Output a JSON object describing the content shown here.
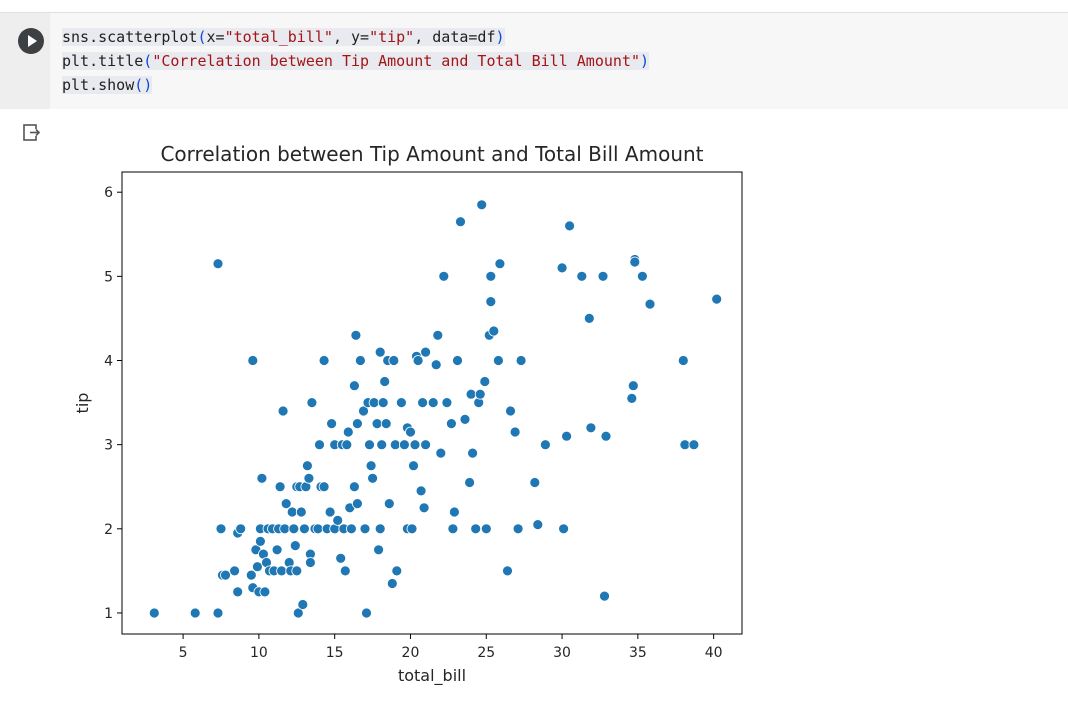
{
  "notebook": {
    "code_lines": [
      {
        "parts": [
          {
            "t": "sns.scatterplot",
            "c": "kw"
          },
          {
            "t": "(",
            "c": "paren"
          },
          {
            "t": "x=",
            "c": "kw"
          },
          {
            "t": "\"total_bill\"",
            "c": "str"
          },
          {
            "t": ", y=",
            "c": "kw"
          },
          {
            "t": "\"tip\"",
            "c": "str"
          },
          {
            "t": ", data=df",
            "c": "kw"
          },
          {
            "t": ")",
            "c": "paren"
          }
        ]
      },
      {
        "parts": [
          {
            "t": "plt.title",
            "c": "kw"
          },
          {
            "t": "(",
            "c": "paren"
          },
          {
            "t": "\"Correlation between Tip Amount and Total Bill Amount\"",
            "c": "str"
          },
          {
            "t": ")",
            "c": "paren"
          }
        ]
      },
      {
        "parts": [
          {
            "t": "plt.show",
            "c": "kw"
          },
          {
            "t": "()",
            "c": "paren"
          }
        ]
      }
    ],
    "run_icon": "play-icon",
    "output_icon": "output-arrow-icon"
  },
  "chart_data": {
    "type": "scatter",
    "title": "Correlation between Tip Amount and Total Bill Amount",
    "xlabel": "total_bill",
    "ylabel": "tip",
    "xlim": [
      0.97,
      41.87
    ],
    "ylim": [
      0.75,
      6.24
    ],
    "xticks": [
      5,
      10,
      15,
      20,
      25,
      30,
      35,
      40
    ],
    "yticks": [
      1,
      2,
      3,
      4,
      5,
      6
    ],
    "grid": false,
    "point_color": "#1f77b4",
    "points": [
      [
        3.1,
        1.0
      ],
      [
        5.8,
        1.0
      ],
      [
        7.3,
        1.0
      ],
      [
        7.3,
        5.15
      ],
      [
        7.5,
        2.0
      ],
      [
        7.6,
        1.45
      ],
      [
        7.8,
        1.45
      ],
      [
        8.4,
        1.5
      ],
      [
        8.6,
        1.25
      ],
      [
        8.6,
        1.95
      ],
      [
        8.8,
        2.0
      ],
      [
        9.5,
        1.45
      ],
      [
        9.6,
        4.0
      ],
      [
        9.6,
        1.3
      ],
      [
        9.8,
        1.75
      ],
      [
        9.9,
        1.55
      ],
      [
        10.0,
        1.25
      ],
      [
        10.1,
        2.0
      ],
      [
        10.1,
        1.85
      ],
      [
        10.2,
        2.6
      ],
      [
        10.3,
        1.7
      ],
      [
        10.4,
        1.25
      ],
      [
        10.5,
        1.6
      ],
      [
        10.6,
        2.0
      ],
      [
        10.7,
        1.5
      ],
      [
        10.9,
        2.0
      ],
      [
        11.0,
        1.5
      ],
      [
        11.2,
        1.75
      ],
      [
        11.3,
        2.0
      ],
      [
        11.4,
        2.5
      ],
      [
        11.5,
        1.5
      ],
      [
        11.6,
        3.4
      ],
      [
        11.7,
        2.0
      ],
      [
        11.8,
        2.3
      ],
      [
        12.0,
        1.6
      ],
      [
        12.1,
        1.5
      ],
      [
        12.2,
        2.2
      ],
      [
        12.3,
        2.0
      ],
      [
        12.4,
        1.8
      ],
      [
        12.5,
        1.5
      ],
      [
        12.5,
        2.5
      ],
      [
        12.6,
        1.0
      ],
      [
        12.7,
        2.5
      ],
      [
        12.8,
        2.2
      ],
      [
        12.9,
        1.1
      ],
      [
        13.0,
        2.0
      ],
      [
        13.1,
        2.5
      ],
      [
        13.2,
        2.75
      ],
      [
        13.3,
        2.6
      ],
      [
        13.4,
        1.7
      ],
      [
        13.4,
        1.6
      ],
      [
        13.5,
        3.5
      ],
      [
        13.7,
        2.0
      ],
      [
        13.9,
        2.0
      ],
      [
        14.0,
        3.0
      ],
      [
        14.1,
        2.5
      ],
      [
        14.3,
        4.0
      ],
      [
        14.3,
        2.5
      ],
      [
        14.5,
        2.0
      ],
      [
        14.7,
        2.2
      ],
      [
        14.8,
        3.25
      ],
      [
        15.0,
        2.0
      ],
      [
        15.0,
        3.0
      ],
      [
        15.2,
        2.1
      ],
      [
        15.4,
        1.65
      ],
      [
        15.5,
        3.0
      ],
      [
        15.6,
        2.0
      ],
      [
        15.7,
        1.5
      ],
      [
        15.8,
        3.0
      ],
      [
        15.9,
        3.15
      ],
      [
        16.0,
        2.25
      ],
      [
        16.1,
        2.0
      ],
      [
        16.3,
        3.7
      ],
      [
        16.3,
        2.5
      ],
      [
        16.4,
        4.3
      ],
      [
        16.5,
        2.3
      ],
      [
        16.5,
        3.25
      ],
      [
        16.7,
        4.0
      ],
      [
        16.9,
        3.4
      ],
      [
        17.0,
        2.0
      ],
      [
        17.1,
        1.0
      ],
      [
        17.2,
        3.5
      ],
      [
        17.3,
        3.0
      ],
      [
        17.4,
        2.75
      ],
      [
        17.5,
        2.6
      ],
      [
        17.6,
        3.5
      ],
      [
        17.8,
        3.25
      ],
      [
        17.9,
        1.75
      ],
      [
        18.0,
        4.1
      ],
      [
        18.0,
        2.0
      ],
      [
        18.1,
        3.0
      ],
      [
        18.2,
        3.5
      ],
      [
        18.3,
        3.75
      ],
      [
        18.4,
        3.25
      ],
      [
        18.5,
        4.0
      ],
      [
        18.6,
        2.3
      ],
      [
        18.8,
        1.35
      ],
      [
        18.9,
        4.0
      ],
      [
        19.0,
        3.0
      ],
      [
        19.1,
        1.5
      ],
      [
        19.4,
        3.5
      ],
      [
        19.6,
        3.0
      ],
      [
        19.8,
        2.0
      ],
      [
        19.8,
        3.2
      ],
      [
        20.0,
        3.15
      ],
      [
        20.1,
        2.0
      ],
      [
        20.2,
        2.75
      ],
      [
        20.3,
        3.0
      ],
      [
        20.4,
        4.05
      ],
      [
        20.5,
        4.0
      ],
      [
        20.7,
        2.45
      ],
      [
        20.8,
        3.5
      ],
      [
        20.9,
        2.25
      ],
      [
        21.0,
        4.1
      ],
      [
        21.0,
        3.0
      ],
      [
        21.5,
        3.5
      ],
      [
        21.7,
        3.95
      ],
      [
        21.8,
        4.3
      ],
      [
        22.0,
        2.9
      ],
      [
        22.2,
        5.0
      ],
      [
        22.4,
        3.5
      ],
      [
        22.7,
        3.25
      ],
      [
        22.8,
        2.0
      ],
      [
        22.9,
        2.2
      ],
      [
        23.1,
        4.0
      ],
      [
        23.3,
        5.65
      ],
      [
        23.6,
        3.3
      ],
      [
        23.9,
        2.55
      ],
      [
        24.0,
        3.6
      ],
      [
        24.1,
        2.9
      ],
      [
        24.3,
        2.0
      ],
      [
        24.5,
        3.5
      ],
      [
        24.6,
        3.6
      ],
      [
        24.7,
        5.85
      ],
      [
        24.9,
        3.75
      ],
      [
        25.0,
        2.0
      ],
      [
        25.2,
        4.3
      ],
      [
        25.3,
        5.0
      ],
      [
        25.3,
        4.7
      ],
      [
        25.5,
        4.35
      ],
      [
        25.8,
        4.0
      ],
      [
        25.9,
        5.15
      ],
      [
        26.4,
        1.5
      ],
      [
        26.6,
        3.4
      ],
      [
        26.9,
        3.15
      ],
      [
        27.1,
        2.0
      ],
      [
        27.3,
        4.0
      ],
      [
        28.2,
        2.55
      ],
      [
        28.4,
        2.05
      ],
      [
        28.9,
        3.0
      ],
      [
        30.0,
        5.1
      ],
      [
        30.1,
        2.0
      ],
      [
        30.3,
        3.1
      ],
      [
        30.5,
        5.6
      ],
      [
        31.3,
        5.0
      ],
      [
        31.8,
        4.5
      ],
      [
        31.9,
        3.2
      ],
      [
        32.7,
        5.0
      ],
      [
        32.8,
        1.2
      ],
      [
        32.9,
        3.1
      ],
      [
        34.6,
        3.55
      ],
      [
        34.7,
        3.7
      ],
      [
        34.8,
        5.2
      ],
      [
        34.8,
        5.17
      ],
      [
        35.3,
        5.0
      ],
      [
        35.8,
        4.67
      ],
      [
        38.0,
        4.0
      ],
      [
        38.1,
        3.0
      ],
      [
        38.7,
        3.0
      ],
      [
        40.2,
        4.73
      ]
    ]
  }
}
